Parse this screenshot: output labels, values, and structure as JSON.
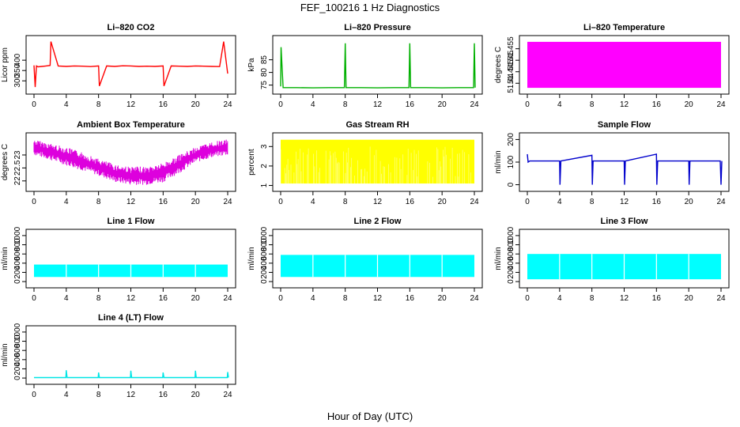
{
  "figure": {
    "suptitle": "FEF_100216  1 Hz Diagnostics",
    "xlabel": "Hour of Day (UTC)"
  },
  "chart_data": [
    {
      "type": "line",
      "title": "Li–820 CO2",
      "ylabel": "Licor ppm",
      "xlim": [
        0,
        24
      ],
      "xticks": [
        0,
        4,
        8,
        12,
        16,
        20,
        24
      ],
      "ylim": [
        255,
        500
      ],
      "yticks": [
        300,
        350,
        400
      ],
      "color": "#ff0000",
      "series": [
        {
          "x": [
            0,
            0.15,
            0.3,
            0.5,
            1,
            1.5,
            2,
            2.1,
            3,
            4,
            5,
            6,
            7,
            8,
            8.1,
            9,
            10,
            11,
            12,
            13,
            14,
            15,
            16,
            16.1,
            17,
            18,
            19,
            20,
            21,
            22,
            23,
            23.5,
            24
          ],
          "y": [
            375,
            270,
            372,
            368,
            370,
            372,
            375,
            490,
            372,
            370,
            372,
            371,
            369,
            372,
            275,
            372,
            370,
            373,
            372,
            370,
            371,
            370,
            372,
            275,
            372,
            371,
            370,
            372,
            371,
            370,
            369,
            490,
            335
          ]
        }
      ]
    },
    {
      "type": "line",
      "title": "Li–820 Pressure",
      "ylabel": "kPa",
      "xlim": [
        0,
        24
      ],
      "xticks": [
        0,
        4,
        8,
        12,
        16,
        20,
        24
      ],
      "ylim": [
        73,
        93
      ],
      "yticks": [
        75,
        80,
        85
      ],
      "color": "#00b000",
      "series": [
        {
          "x": [
            0,
            0.05,
            0.3,
            2,
            4,
            6,
            7.9,
            8,
            8.1,
            10,
            12,
            14,
            15.9,
            16,
            16.1,
            18,
            20,
            22,
            23.9,
            24,
            24.1
          ],
          "y": [
            74.5,
            90,
            74,
            74,
            73.9,
            74,
            74,
            91.5,
            74,
            74,
            73.9,
            74,
            74,
            91.5,
            74,
            74,
            73.9,
            74,
            74,
            91.5,
            74
          ]
        }
      ]
    },
    {
      "type": "area",
      "title": "Li–820 Temperature",
      "ylabel": "degrees C",
      "xlim": [
        0,
        24
      ],
      "xticks": [
        0,
        4,
        8,
        12,
        16,
        20,
        24
      ],
      "ylim": [
        51.437,
        51.459
      ],
      "yticks": [
        51.44,
        51.445,
        51.45,
        51.455
      ],
      "color": "#ff00ff",
      "series": [
        {
          "x": [
            0,
            24
          ],
          "ymin": 51.438,
          "ymax": 51.458
        }
      ]
    },
    {
      "type": "area",
      "title": "Ambient Box Temperature",
      "ylabel": "degrees C",
      "xlim": [
        0,
        24
      ],
      "xticks": [
        0,
        4,
        8,
        12,
        16,
        20,
        24
      ],
      "ylim": [
        21.75,
        23.7
      ],
      "yticks": [
        22.0,
        22.5,
        23.0
      ],
      "color": "#dd00dd",
      "series": [
        {
          "x": [
            0,
            2,
            4,
            6,
            8,
            10,
            12,
            14,
            16,
            18,
            20,
            22,
            24
          ],
          "ymax": [
            23.6,
            23.45,
            23.3,
            23.1,
            22.85,
            22.65,
            22.55,
            22.55,
            22.7,
            23.0,
            23.3,
            23.5,
            23.6
          ],
          "ymin": [
            23.0,
            22.8,
            22.6,
            22.4,
            22.2,
            21.95,
            21.85,
            21.85,
            21.95,
            22.3,
            22.7,
            22.9,
            23.0
          ]
        }
      ]
    },
    {
      "type": "area",
      "title": "Gas Stream RH",
      "ylabel": "percent",
      "xlim": [
        0,
        24
      ],
      "xticks": [
        0,
        4,
        8,
        12,
        16,
        20,
        24
      ],
      "ylim": [
        0.9,
        3.5
      ],
      "yticks": [
        1,
        2,
        3
      ],
      "color": "#ffff00",
      "series": [
        {
          "x": [
            0,
            24
          ],
          "ymin": 1.1,
          "ymax": 3.35
        }
      ]
    },
    {
      "type": "line",
      "title": "Sample Flow",
      "ylabel": "ml/min",
      "xlim": [
        0,
        24
      ],
      "xticks": [
        0,
        4,
        8,
        12,
        16,
        20,
        24
      ],
      "ylim": [
        -12,
        212
      ],
      "yticks": [
        0,
        100,
        200
      ],
      "color": "#0000cc",
      "series": [
        {
          "x": [
            0,
            0.1,
            0.3,
            4,
            4.05,
            4.15,
            8,
            8.05,
            8.15,
            12,
            12.05,
            12.15,
            16,
            16.05,
            16.15,
            20,
            20.05,
            20.15,
            23.9,
            24,
            24.1
          ],
          "y": [
            135,
            100,
            105,
            105,
            0,
            105,
            130,
            0,
            105,
            105,
            0,
            105,
            135,
            0,
            105,
            105,
            0,
            105,
            105,
            0,
            105
          ]
        }
      ]
    },
    {
      "type": "area",
      "title": "Line 1 Flow",
      "ylabel": "ml/min",
      "xlim": [
        0,
        24
      ],
      "xticks": [
        0,
        4,
        8,
        12,
        16,
        20,
        24
      ],
      "ylim": [
        -50,
        1050
      ],
      "yticks": [
        0,
        200,
        400,
        600,
        800,
        1000
      ],
      "color": "#00ffff",
      "series": [
        {
          "x": [
            0,
            24
          ],
          "ymin": 100,
          "ymax": 370
        }
      ]
    },
    {
      "type": "area",
      "title": "Line 2 Flow",
      "ylabel": "ml/min",
      "xlim": [
        0,
        24
      ],
      "xticks": [
        0,
        4,
        8,
        12,
        16,
        20,
        24
      ],
      "ylim": [
        -50,
        1050
      ],
      "yticks": [
        0,
        200,
        400,
        600,
        800,
        1000
      ],
      "color": "#00ffff",
      "series": [
        {
          "x": [
            0,
            24
          ],
          "ymin": 100,
          "ymax": 580
        }
      ]
    },
    {
      "type": "area",
      "title": "Line 3 Flow",
      "ylabel": "ml/min",
      "xlim": [
        0,
        24
      ],
      "xticks": [
        0,
        4,
        8,
        12,
        16,
        20,
        24
      ],
      "ylim": [
        -50,
        1050
      ],
      "yticks": [
        0,
        200,
        400,
        600,
        800,
        1000
      ],
      "color": "#00ffff",
      "series": [
        {
          "x": [
            0,
            24
          ],
          "ymin": 50,
          "ymax": 600
        }
      ]
    },
    {
      "type": "line",
      "title": "Line 4 (LT) Flow",
      "ylabel": "ml/min",
      "xlim": [
        0,
        24
      ],
      "xticks": [
        0,
        4,
        8,
        12,
        16,
        20,
        24
      ],
      "ylim": [
        -50,
        1050
      ],
      "yticks": [
        0,
        200,
        400,
        600,
        800,
        1000
      ],
      "color": "#00e5e5",
      "series": [
        {
          "x": [
            0,
            3.95,
            4,
            4.1,
            7.95,
            8,
            8.1,
            11.95,
            12,
            12.1,
            15.95,
            16,
            16.1,
            19.95,
            20,
            20.1,
            23.95,
            24,
            24.1
          ],
          "y": [
            10,
            10,
            170,
            10,
            10,
            120,
            10,
            10,
            160,
            10,
            10,
            120,
            10,
            10,
            160,
            10,
            10,
            130,
            10
          ]
        }
      ]
    }
  ]
}
